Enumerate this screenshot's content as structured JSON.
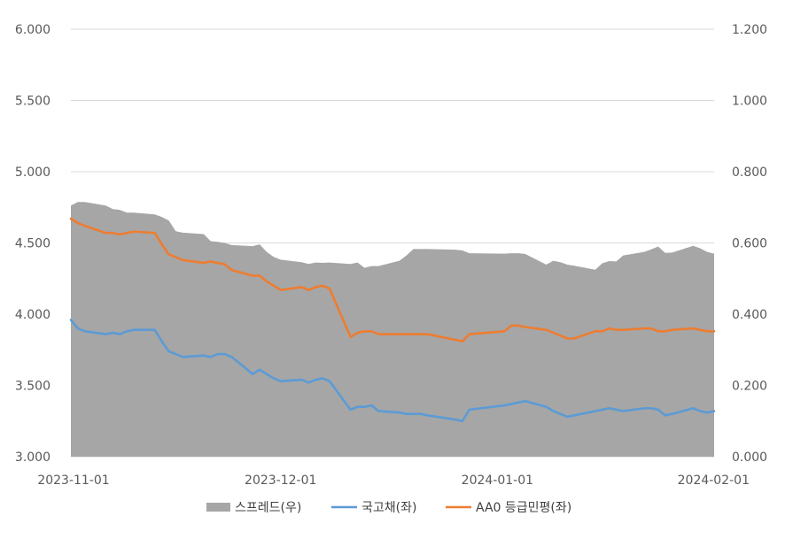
{
  "chart_data": {
    "type": "line",
    "x_axis": {
      "ticks": [
        "2023-11-01",
        "2023-12-01",
        "2024-01-01",
        "2024-02-01"
      ],
      "range": [
        "2023-11-01",
        "2024-02-01"
      ]
    },
    "y_left": {
      "range": [
        3.0,
        6.0
      ],
      "ticks": [
        "3.000",
        "3.500",
        "4.000",
        "4.500",
        "5.000",
        "5.500",
        "6.000"
      ]
    },
    "y_right": {
      "range": [
        0.0,
        1.2
      ],
      "ticks": [
        "0.000",
        "0.200",
        "0.400",
        "0.600",
        "0.800",
        "1.000",
        "1.200"
      ]
    },
    "grid": true,
    "legend_position": "bottom",
    "series": [
      {
        "name": "스프레드(우)",
        "type": "area",
        "axis": "right",
        "color": "#a6a6a6",
        "x": [
          "2023-11-01",
          "2023-11-02",
          "2023-11-03",
          "2023-11-06",
          "2023-11-07",
          "2023-11-08",
          "2023-11-09",
          "2023-11-10",
          "2023-11-13",
          "2023-11-14",
          "2023-11-15",
          "2023-11-16",
          "2023-11-17",
          "2023-11-20",
          "2023-11-21",
          "2023-11-22",
          "2023-11-23",
          "2023-11-24",
          "2023-11-27",
          "2023-11-28",
          "2023-11-29",
          "2023-11-30",
          "2023-12-01",
          "2023-12-04",
          "2023-12-05",
          "2023-12-06",
          "2023-12-07",
          "2023-12-08",
          "2023-12-11",
          "2023-12-12",
          "2023-12-13",
          "2023-12-14",
          "2023-12-15",
          "2023-12-18",
          "2023-12-19",
          "2023-12-20",
          "2023-12-21",
          "2023-12-22",
          "2023-12-26",
          "2023-12-27",
          "2023-12-28",
          "2024-01-02",
          "2024-01-03",
          "2024-01-04",
          "2024-01-05",
          "2024-01-08",
          "2024-01-09",
          "2024-01-10",
          "2024-01-11",
          "2024-01-12",
          "2024-01-15",
          "2024-01-16",
          "2024-01-17",
          "2024-01-18",
          "2024-01-19",
          "2024-01-22",
          "2024-01-23",
          "2024-01-24",
          "2024-01-25",
          "2024-01-26",
          "2024-01-29",
          "2024-01-30",
          "2024-01-31",
          "2024-02-01"
        ],
        "values": [
          0.705,
          0.715,
          0.715,
          0.705,
          0.695,
          0.693,
          0.685,
          0.685,
          0.68,
          0.673,
          0.663,
          0.633,
          0.629,
          0.625,
          0.605,
          0.603,
          0.6,
          0.594,
          0.591,
          0.596,
          0.575,
          0.561,
          0.553,
          0.546,
          0.541,
          0.545,
          0.544,
          0.545,
          0.541,
          0.545,
          0.53,
          0.535,
          0.535,
          0.55,
          0.565,
          0.583,
          0.583,
          0.583,
          0.581,
          0.579,
          0.571,
          0.57,
          0.571,
          0.571,
          0.569,
          0.539,
          0.55,
          0.546,
          0.539,
          0.536,
          0.525,
          0.543,
          0.549,
          0.548,
          0.565,
          0.575,
          0.582,
          0.59,
          0.572,
          0.573,
          0.592,
          0.585,
          0.575,
          0.57
        ],
        "x_dates": true
      },
      {
        "name": "국고채(좌)",
        "type": "line",
        "axis": "left",
        "color": "#5b9bd5",
        "x": [
          "2023-11-01",
          "2023-11-02",
          "2023-11-03",
          "2023-11-06",
          "2023-11-07",
          "2023-11-08",
          "2023-11-09",
          "2023-11-10",
          "2023-11-13",
          "2023-11-14",
          "2023-11-15",
          "2023-11-16",
          "2023-11-17",
          "2023-11-20",
          "2023-11-21",
          "2023-11-22",
          "2023-11-23",
          "2023-11-24",
          "2023-11-27",
          "2023-11-28",
          "2023-11-29",
          "2023-11-30",
          "2023-12-01",
          "2023-12-04",
          "2023-12-05",
          "2023-12-06",
          "2023-12-07",
          "2023-12-08",
          "2023-12-11",
          "2023-12-12",
          "2023-12-13",
          "2023-12-14",
          "2023-12-15",
          "2023-12-18",
          "2023-12-19",
          "2023-12-20",
          "2023-12-21",
          "2023-12-22",
          "2023-12-26",
          "2023-12-27",
          "2023-12-28",
          "2024-01-02",
          "2024-01-03",
          "2024-01-04",
          "2024-01-05",
          "2024-01-08",
          "2024-01-09",
          "2024-01-10",
          "2024-01-11",
          "2024-01-12",
          "2024-01-15",
          "2024-01-16",
          "2024-01-17",
          "2024-01-18",
          "2024-01-19",
          "2024-01-22",
          "2024-01-23",
          "2024-01-24",
          "2024-01-25",
          "2024-01-26",
          "2024-01-29",
          "2024-01-30",
          "2024-01-31",
          "2024-02-01"
        ],
        "values": [
          3.96,
          3.9,
          3.88,
          3.86,
          3.87,
          3.86,
          3.88,
          3.89,
          3.89,
          3.81,
          3.74,
          3.72,
          3.7,
          3.71,
          3.7,
          3.72,
          3.72,
          3.7,
          3.58,
          3.61,
          3.58,
          3.55,
          3.53,
          3.54,
          3.52,
          3.54,
          3.55,
          3.53,
          3.33,
          3.35,
          3.35,
          3.36,
          3.32,
          3.31,
          3.3,
          3.3,
          3.3,
          3.29,
          3.26,
          3.25,
          3.33,
          3.36,
          3.37,
          3.38,
          3.39,
          3.35,
          3.32,
          3.3,
          3.28,
          3.29,
          3.32,
          3.33,
          3.34,
          3.33,
          3.32,
          3.34,
          3.34,
          3.33,
          3.29,
          3.3,
          3.34,
          3.32,
          3.31,
          3.32
        ],
        "x_dates": true
      },
      {
        "name": "AA0 등급민평(좌)",
        "type": "line",
        "axis": "left",
        "color": "#ed7d31",
        "x": [
          "2023-11-01",
          "2023-11-02",
          "2023-11-03",
          "2023-11-06",
          "2023-11-07",
          "2023-11-08",
          "2023-11-09",
          "2023-11-10",
          "2023-11-13",
          "2023-11-14",
          "2023-11-15",
          "2023-11-16",
          "2023-11-17",
          "2023-11-20",
          "2023-11-21",
          "2023-11-22",
          "2023-11-23",
          "2023-11-24",
          "2023-11-27",
          "2023-11-28",
          "2023-11-29",
          "2023-11-30",
          "2023-12-01",
          "2023-12-04",
          "2023-12-05",
          "2023-12-06",
          "2023-12-07",
          "2023-12-08",
          "2023-12-11",
          "2023-12-12",
          "2023-12-13",
          "2023-12-14",
          "2023-12-15",
          "2023-12-18",
          "2023-12-19",
          "2023-12-20",
          "2023-12-21",
          "2023-12-22",
          "2023-12-26",
          "2023-12-27",
          "2023-12-28",
          "2024-01-02",
          "2024-01-03",
          "2024-01-04",
          "2024-01-05",
          "2024-01-08",
          "2024-01-09",
          "2024-01-10",
          "2024-01-11",
          "2024-01-12",
          "2024-01-15",
          "2024-01-16",
          "2024-01-17",
          "2024-01-18",
          "2024-01-19",
          "2024-01-22",
          "2024-01-23",
          "2024-01-24",
          "2024-01-25",
          "2024-01-26",
          "2024-01-29",
          "2024-01-30",
          "2024-01-31",
          "2024-02-01"
        ],
        "values": [
          4.67,
          4.64,
          4.62,
          4.57,
          4.57,
          4.56,
          4.57,
          4.58,
          4.57,
          4.49,
          4.42,
          4.4,
          4.38,
          4.36,
          4.37,
          4.36,
          4.35,
          4.31,
          4.27,
          4.27,
          4.23,
          4.2,
          4.17,
          4.19,
          4.17,
          4.19,
          4.2,
          4.18,
          3.84,
          3.87,
          3.88,
          3.88,
          3.86,
          3.86,
          3.86,
          3.86,
          3.86,
          3.86,
          3.82,
          3.81,
          3.86,
          3.88,
          3.92,
          3.92,
          3.91,
          3.89,
          3.87,
          3.85,
          3.83,
          3.83,
          3.88,
          3.88,
          3.9,
          3.89,
          3.89,
          3.9,
          3.9,
          3.88,
          3.88,
          3.89,
          3.9,
          3.89,
          3.88,
          3.88
        ],
        "x_dates": true
      }
    ]
  }
}
